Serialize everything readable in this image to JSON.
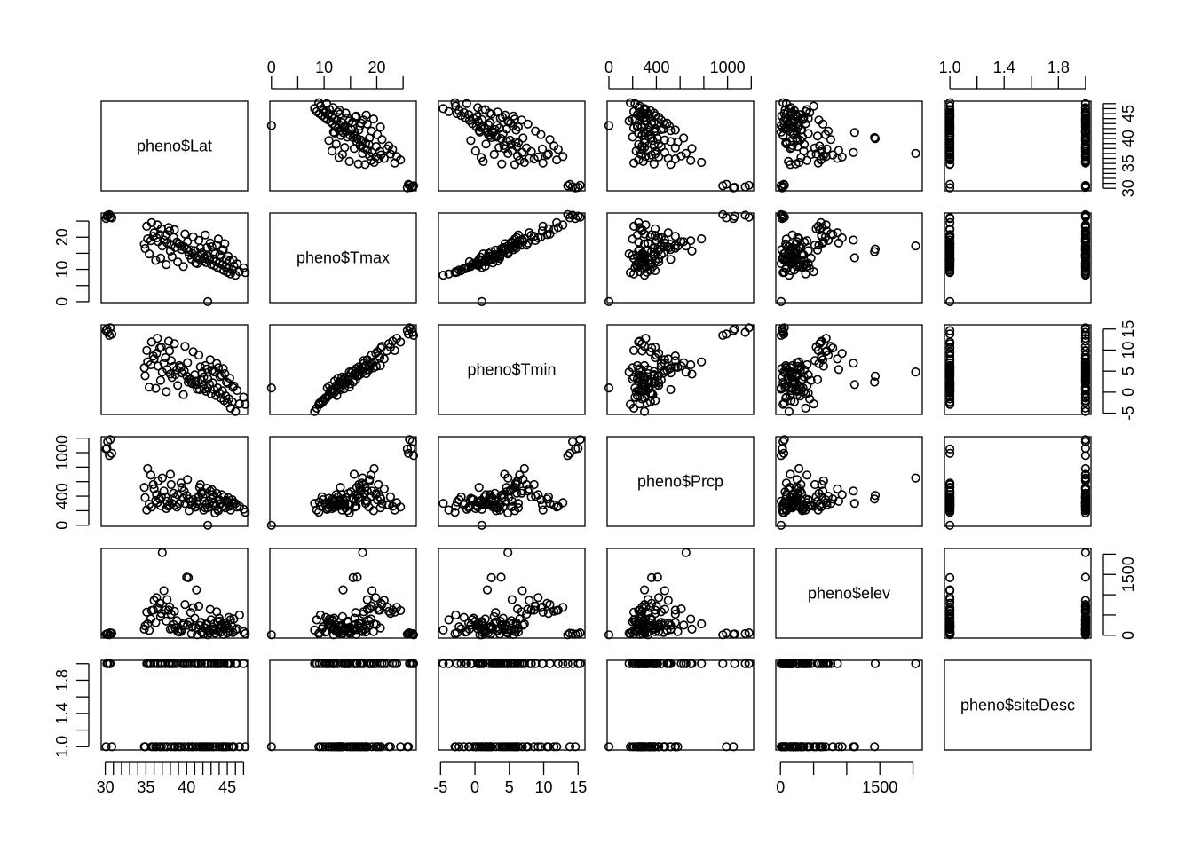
{
  "chart_data": {
    "type": "scatter",
    "variables": [
      {
        "name": "pheno$Lat",
        "range": [
          29.5,
          47.5
        ],
        "ticks": [
          30,
          35,
          40,
          45
        ],
        "tick_labels": [
          "30",
          "35",
          "40",
          "45"
        ],
        "minor_step": 1
      },
      {
        "name": "pheno$Tmax",
        "range": [
          -0.3,
          27.5
        ],
        "ticks": [
          0,
          10,
          20
        ],
        "tick_labels": [
          "0",
          "10",
          "20"
        ],
        "minor_step": 5
      },
      {
        "name": "pheno$Tmin",
        "range": [
          -5.3,
          16.0
        ],
        "ticks": [
          -5,
          0,
          5,
          10,
          15
        ],
        "tick_labels": [
          "-5",
          "0",
          "5",
          "10",
          "15"
        ],
        "minor_step": 5
      },
      {
        "name": "pheno$Prcp",
        "range": [
          -15,
          1220
        ],
        "ticks": [
          0,
          400,
          1000
        ],
        "tick_labels": [
          "0",
          "400",
          "1000"
        ],
        "minor_step": 200
      },
      {
        "name": "pheno$elev",
        "range": [
          -70,
          2140
        ],
        "ticks": [
          0,
          1500
        ],
        "tick_labels": [
          "0",
          "1500"
        ],
        "minor_step": 500
      },
      {
        "name": "pheno$siteDesc",
        "range": [
          0.96,
          2.04
        ],
        "ticks": [
          1.0,
          1.4,
          1.8
        ],
        "tick_labels": [
          "1.0",
          "1.4",
          "1.8"
        ],
        "minor_step": 0.2
      }
    ],
    "observations": [
      [
        30.2,
        26.5,
        15.0,
        1060,
        30,
        2
      ],
      [
        30.3,
        26.8,
        14.2,
        1150,
        40,
        2
      ],
      [
        30.5,
        27.0,
        13.5,
        960,
        10,
        2
      ],
      [
        30.6,
        26.2,
        15.3,
        1180,
        60,
        2
      ],
      [
        30.1,
        25.8,
        14.6,
        1050,
        25,
        1
      ],
      [
        30.8,
        26.0,
        13.8,
        990,
        50,
        1
      ],
      [
        42.6,
        0.0,
        1.0,
        0,
        10,
        1
      ],
      [
        34.8,
        17.8,
        5.8,
        520,
        150,
        1
      ],
      [
        35.2,
        19.5,
        7.2,
        780,
        280,
        2
      ],
      [
        35.6,
        18.9,
        6.5,
        690,
        400,
        2
      ],
      [
        35.9,
        20.3,
        8.6,
        560,
        620,
        1
      ],
      [
        36.0,
        21.4,
        7.9,
        500,
        860,
        2
      ],
      [
        36.3,
        19.8,
        9.2,
        420,
        930,
        1
      ],
      [
        36.5,
        18.6,
        6.2,
        610,
        650,
        2
      ],
      [
        36.7,
        20.8,
        10.5,
        360,
        790,
        1
      ],
      [
        37.0,
        17.3,
        4.8,
        650,
        2040,
        2
      ],
      [
        37.2,
        19.1,
        6.9,
        470,
        1100,
        1
      ],
      [
        37.4,
        20.6,
        8.2,
        390,
        620,
        2
      ],
      [
        37.6,
        18.2,
        5.4,
        330,
        880,
        1
      ],
      [
        37.9,
        21.9,
        9.8,
        280,
        700,
        2
      ],
      [
        38.1,
        17.5,
        7.5,
        560,
        520,
        1
      ],
      [
        38.4,
        19.9,
        6.1,
        440,
        260,
        2
      ],
      [
        38.6,
        16.8,
        4.2,
        380,
        180,
        1
      ],
      [
        38.8,
        18.5,
        5.3,
        250,
        360,
        2
      ],
      [
        39.1,
        17.9,
        6.3,
        300,
        80,
        1
      ],
      [
        39.4,
        16.2,
        4.6,
        520,
        140,
        2
      ],
      [
        39.7,
        17.0,
        5.1,
        470,
        300,
        1
      ],
      [
        40.0,
        16.3,
        3.8,
        410,
        1430,
        2
      ],
      [
        40.2,
        15.5,
        2.4,
        360,
        1420,
        1
      ],
      [
        40.5,
        16.0,
        3.0,
        330,
        560,
        2
      ],
      [
        40.7,
        14.9,
        2.0,
        280,
        200,
        1
      ],
      [
        41.0,
        15.8,
        4.1,
        250,
        420,
        2
      ],
      [
        41.2,
        13.6,
        1.8,
        300,
        1120,
        1
      ],
      [
        41.4,
        14.2,
        2.5,
        380,
        150,
        2
      ],
      [
        41.6,
        13.1,
        0.6,
        520,
        240,
        1
      ],
      [
        41.8,
        14.6,
        2.9,
        440,
        320,
        2
      ],
      [
        42.0,
        12.6,
        1.4,
        390,
        90,
        1
      ],
      [
        42.2,
        13.8,
        0.8,
        330,
        180,
        2
      ],
      [
        42.4,
        12.1,
        0.2,
        280,
        260,
        1
      ],
      [
        42.6,
        14.0,
        3.2,
        240,
        120,
        2
      ],
      [
        42.8,
        12.8,
        1.9,
        300,
        60,
        1
      ],
      [
        43.0,
        11.6,
        -0.4,
        360,
        380,
        2
      ],
      [
        43.2,
        13.3,
        2.2,
        420,
        200,
        1
      ],
      [
        43.4,
        11.2,
        0.5,
        310,
        280,
        2
      ],
      [
        43.6,
        12.4,
        -0.8,
        260,
        150,
        1
      ],
      [
        43.8,
        10.6,
        1.0,
        220,
        340,
        2
      ],
      [
        44.0,
        11.9,
        -0.2,
        350,
        420,
        1
      ],
      [
        44.2,
        10.2,
        -1.4,
        300,
        80,
        2
      ],
      [
        44.4,
        11.4,
        0.3,
        270,
        230,
        1
      ],
      [
        44.6,
        9.6,
        -2.0,
        390,
        160,
        2
      ],
      [
        44.8,
        10.8,
        -0.9,
        240,
        300,
        1
      ],
      [
        45.0,
        9.1,
        -2.6,
        320,
        60,
        2
      ],
      [
        45.2,
        10.3,
        -1.6,
        280,
        440,
        1
      ],
      [
        45.4,
        8.6,
        -3.8,
        210,
        380,
        2
      ],
      [
        45.6,
        9.8,
        -2.3,
        350,
        210,
        1
      ],
      [
        46.0,
        8.2,
        -4.6,
        300,
        130,
        2
      ],
      [
        46.5,
        9.3,
        -2.8,
        260,
        500,
        1
      ],
      [
        47.0,
        10.5,
        -1.2,
        220,
        90,
        2
      ],
      [
        47.2,
        9.0,
        -2.9,
        180,
        40,
        1
      ],
      [
        34.9,
        16.5,
        3.9,
        380,
        230,
        1
      ],
      [
        35.4,
        14.8,
        1.2,
        290,
        120,
        2
      ],
      [
        36.2,
        12.8,
        0.9,
        340,
        310,
        1
      ],
      [
        36.8,
        13.5,
        2.8,
        270,
        460,
        2
      ],
      [
        37.5,
        11.5,
        0.1,
        230,
        350,
        1
      ],
      [
        38.2,
        13.9,
        3.5,
        300,
        170,
        2
      ],
      [
        38.9,
        12.3,
        1.6,
        420,
        90,
        1
      ],
      [
        39.6,
        10.9,
        -0.6,
        370,
        250,
        2
      ],
      [
        40.3,
        14.4,
        3.1,
        200,
        330,
        1
      ],
      [
        41.1,
        12.0,
        2.6,
        250,
        190,
        2
      ],
      [
        41.9,
        15.1,
        4.6,
        460,
        70,
        1
      ],
      [
        42.5,
        16.8,
        5.5,
        510,
        280,
        2
      ],
      [
        43.3,
        15.4,
        4.9,
        380,
        150,
        1
      ],
      [
        44.1,
        14.5,
        3.7,
        290,
        350,
        2
      ],
      [
        44.9,
        13.0,
        2.4,
        340,
        220,
        1
      ],
      [
        45.3,
        12.6,
        3.3,
        260,
        110,
        2
      ],
      [
        45.8,
        11.0,
        1.5,
        310,
        400,
        1
      ],
      [
        43.7,
        17.5,
        6.8,
        440,
        580,
        2
      ],
      [
        42.9,
        18.2,
        7.7,
        470,
        640,
        1
      ],
      [
        41.5,
        19.0,
        8.8,
        400,
        720,
        2
      ],
      [
        40.8,
        20.1,
        9.6,
        350,
        680,
        1
      ],
      [
        39.8,
        21.0,
        10.9,
        300,
        760,
        2
      ],
      [
        38.5,
        22.3,
        11.5,
        280,
        590,
        1
      ],
      [
        37.8,
        23.0,
        12.1,
        260,
        620,
        2
      ],
      [
        36.9,
        22.6,
        10.7,
        390,
        540,
        1
      ],
      [
        36.4,
        23.8,
        12.8,
        310,
        690,
        2
      ],
      [
        35.7,
        24.5,
        11.9,
        250,
        610,
        1
      ],
      [
        35.1,
        23.4,
        9.9,
        210,
        570,
        2
      ],
      [
        42.3,
        20.7,
        6.3,
        240,
        180,
        1
      ],
      [
        43.9,
        19.4,
        5.8,
        200,
        90,
        2
      ],
      [
        44.7,
        18.0,
        4.4,
        330,
        240,
        1
      ],
      [
        40.1,
        18.6,
        7.0,
        630,
        250,
        2
      ],
      [
        39.3,
        17.2,
        5.9,
        580,
        90,
        1
      ],
      [
        38.0,
        15.7,
        4.3,
        700,
        150,
        2
      ],
      [
        41.7,
        16.6,
        6.0,
        560,
        310,
        1
      ],
      [
        43.1,
        17.0,
        5.2,
        490,
        120,
        2
      ],
      [
        44.3,
        15.9,
        4.0,
        420,
        260,
        1
      ],
      [
        45.1,
        14.1,
        2.1,
        380,
        180,
        2
      ],
      [
        45.7,
        12.9,
        1.1,
        300,
        70,
        1
      ],
      [
        46.2,
        11.7,
        0.4,
        250,
        160,
        2
      ],
      [
        42.1,
        13.4,
        3.6,
        210,
        30,
        1
      ],
      [
        43.5,
        14.8,
        4.8,
        170,
        50,
        2
      ],
      [
        44.5,
        16.1,
        5.6,
        260,
        20,
        1
      ],
      [
        41.3,
        11.8,
        0.7,
        330,
        10,
        2
      ],
      [
        40.6,
        13.2,
        2.3,
        280,
        40,
        1
      ]
    ]
  }
}
